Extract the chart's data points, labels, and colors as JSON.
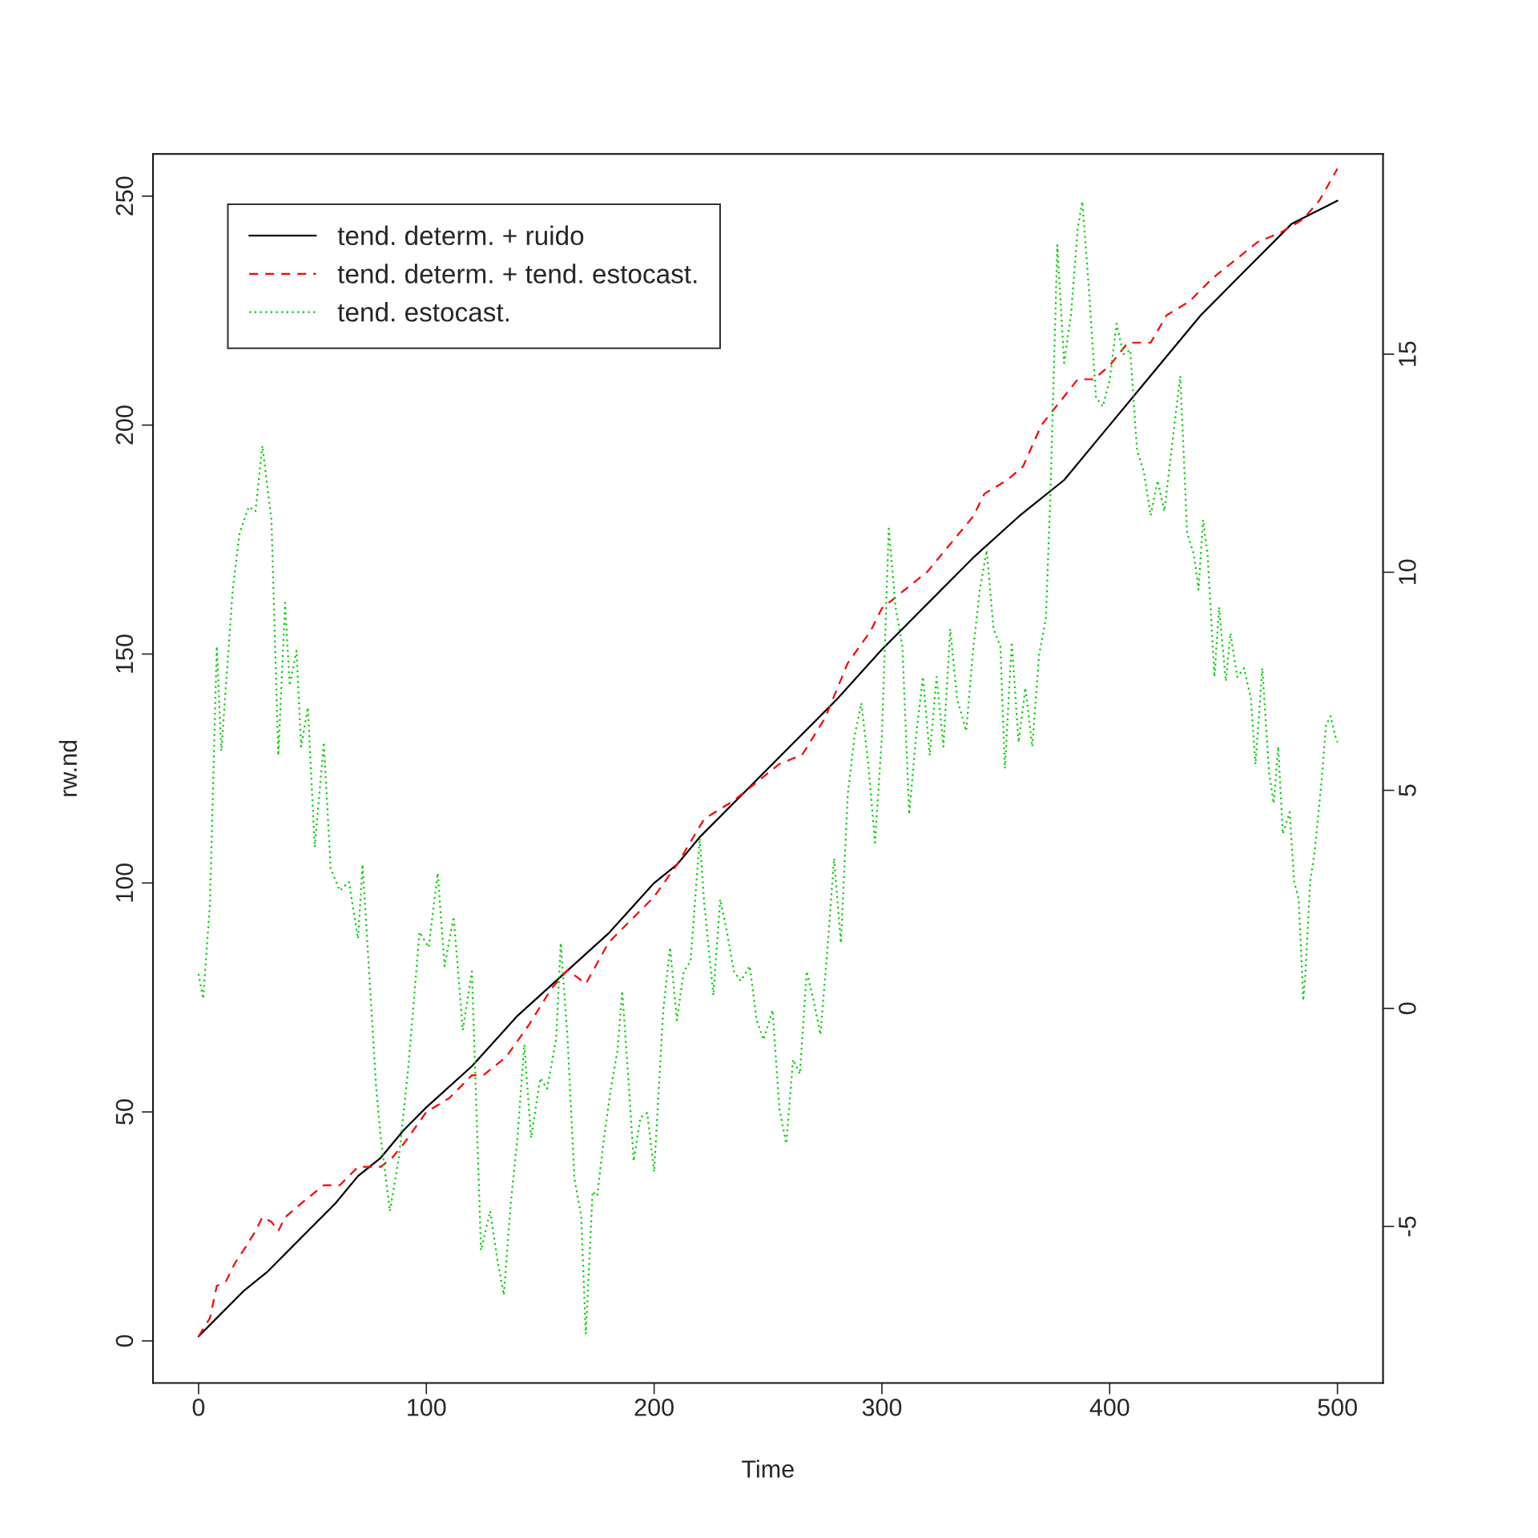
{
  "chart_data": {
    "type": "line",
    "xlabel": "Time",
    "ylabel": "rw.nd",
    "xlim": [
      -20,
      520
    ],
    "ylim": [
      -9.2,
      259.2
    ],
    "y2lim": [
      -8.59,
      19.59
    ],
    "xticks": [
      0,
      100,
      200,
      300,
      400,
      500
    ],
    "yticks": [
      0,
      50,
      100,
      150,
      200,
      250
    ],
    "y2ticks": [
      -5,
      0,
      5,
      10,
      15
    ],
    "legend": "top left",
    "grid": false,
    "series": [
      {
        "name": "tend. determ. + ruido",
        "color": "#000000",
        "line_style": "solid",
        "x": [
          0,
          10,
          20,
          30,
          40,
          50,
          60,
          70,
          80,
          90,
          100,
          120,
          140,
          160,
          180,
          200,
          210,
          220,
          240,
          260,
          280,
          300,
          310,
          320,
          340,
          360,
          380,
          400,
          420,
          440,
          460,
          480,
          500
        ],
        "values": [
          1,
          6,
          11,
          15,
          20,
          25,
          30,
          36,
          40,
          46,
          51,
          60,
          71,
          80,
          89,
          100,
          104,
          110,
          120,
          130,
          140,
          151,
          156,
          161,
          171,
          180,
          188,
          200,
          212,
          224,
          234,
          244,
          249
        ]
      },
      {
        "name": "tend. determ. + tend. estocast.",
        "color": "#ff0000",
        "line_style": "dashed",
        "x": [
          0,
          5,
          8,
          12,
          16,
          20,
          25,
          28,
          32,
          35,
          38,
          45,
          55,
          62,
          70,
          80,
          85,
          90,
          100,
          110,
          120,
          125,
          135,
          145,
          155,
          162,
          170,
          180,
          190,
          200,
          210,
          222,
          235,
          245,
          255,
          265,
          275,
          285,
          295,
          300,
          310,
          320,
          330,
          340,
          345,
          355,
          362,
          370,
          378,
          386,
          393,
          400,
          408,
          418,
          425,
          435,
          445,
          455,
          465,
          475,
          485,
          492,
          500
        ],
        "values": [
          1,
          5,
          12,
          13,
          17,
          20,
          24,
          27,
          26,
          24,
          27,
          30,
          34,
          34,
          38,
          38,
          40,
          43,
          50,
          53,
          58,
          58,
          62,
          69,
          77,
          81,
          78,
          87,
          92,
          97,
          104,
          114,
          118,
          122,
          126,
          128,
          136,
          148,
          155,
          160,
          164,
          168,
          174,
          180,
          185,
          188,
          191,
          200,
          205,
          210,
          210,
          213,
          218,
          218,
          224,
          227,
          232,
          236,
          240,
          242,
          245,
          249,
          256
        ]
      },
      {
        "name": "tend. estocast.",
        "color": "#00cd00",
        "line_style": "dotted",
        "axis": "y2",
        "x": [
          0,
          2,
          5,
          8,
          10,
          12,
          15,
          18,
          22,
          25,
          28,
          32,
          35,
          38,
          40,
          43,
          45,
          48,
          51,
          55,
          58,
          62,
          66,
          70,
          72,
          75,
          78,
          80,
          84,
          88,
          92,
          97,
          101,
          105,
          108,
          112,
          116,
          120,
          124,
          128,
          131,
          134,
          137,
          140,
          143,
          146,
          150,
          153,
          157,
          159,
          162,
          165,
          168,
          170,
          173,
          175,
          178,
          181,
          184,
          186,
          189,
          191,
          194,
          197,
          200,
          204,
          207,
          210,
          213,
          216,
          220,
          222,
          226,
          229,
          232,
          235,
          238,
          242,
          245,
          248,
          252,
          255,
          258,
          261,
          264,
          267,
          270,
          273,
          276,
          279,
          282,
          285,
          288,
          291,
          294,
          297,
          300,
          303,
          306,
          309,
          312,
          315,
          318,
          321,
          324,
          327,
          330,
          333,
          337,
          340,
          343,
          346,
          349,
          352,
          354,
          357,
          360,
          363,
          366,
          369,
          372,
          374,
          377,
          380,
          383,
          386,
          388,
          391,
          394,
          397,
          400,
          403,
          406,
          409,
          412,
          415,
          418,
          421,
          424,
          428,
          431,
          434,
          437,
          439,
          441,
          443,
          446,
          448,
          451,
          453,
          456,
          459,
          462,
          464,
          467,
          470,
          472,
          474,
          476,
          479,
          481,
          483,
          485,
          486,
          488,
          490,
          493,
          495,
          497,
          499,
          500
        ],
        "values": [
          0.79,
          0.22,
          2.4,
          8.3,
          5.9,
          7.4,
          9.6,
          10.9,
          11.5,
          11.4,
          12.9,
          11.2,
          5.8,
          9.3,
          7.4,
          8.2,
          6.0,
          6.9,
          3.7,
          6.1,
          3.2,
          2.7,
          2.9,
          1.6,
          3.3,
          0.74,
          -1.84,
          -2.97,
          -4.65,
          -3.4,
          -1.4,
          1.75,
          1.4,
          3.1,
          0.97,
          2.1,
          -0.5,
          0.85,
          -5.55,
          -4.65,
          -5.7,
          -6.57,
          -4.5,
          -2.97,
          -0.83,
          -2.97,
          -1.6,
          -1.84,
          -0.7,
          1.5,
          -0.7,
          -3.9,
          -4.77,
          -7.47,
          -4.2,
          -4.3,
          -2.97,
          -1.84,
          -0.94,
          0.4,
          -1.84,
          -3.5,
          -2.5,
          -2.4,
          -3.75,
          -0.04,
          1.4,
          -0.27,
          0.85,
          1.08,
          3.9,
          2.4,
          0.3,
          2.5,
          1.75,
          0.85,
          0.63,
          0.97,
          -0.27,
          -0.72,
          -0.04,
          -2.3,
          -3.1,
          -1.17,
          -1.5,
          0.85,
          0.18,
          -0.6,
          1.3,
          3.44,
          1.5,
          4.9,
          6.25,
          7.0,
          5.6,
          3.8,
          6.25,
          11.0,
          9.2,
          8.3,
          4.45,
          6.25,
          7.6,
          5.8,
          7.6,
          6.0,
          8.7,
          7.1,
          6.36,
          8.2,
          9.6,
          10.5,
          8.7,
          8.3,
          5.5,
          8.4,
          6.1,
          7.35,
          6.0,
          8.1,
          8.95,
          11.8,
          17.5,
          14.8,
          15.9,
          17.9,
          18.5,
          16.4,
          14.0,
          13.8,
          14.4,
          15.7,
          15.0,
          15.1,
          12.8,
          12.3,
          11.3,
          12.1,
          11.4,
          13.2,
          14.5,
          10.9,
          10.4,
          9.6,
          11.2,
          10.4,
          7.6,
          9.2,
          7.5,
          8.6,
          7.6,
          7.8,
          7.1,
          5.6,
          7.8,
          5.4,
          4.7,
          6.0,
          4.0,
          4.5,
          2.9,
          2.5,
          0.18,
          0.85,
          2.9,
          3.6,
          5.2,
          6.5,
          6.7,
          6.25,
          6.1
        ]
      }
    ]
  }
}
